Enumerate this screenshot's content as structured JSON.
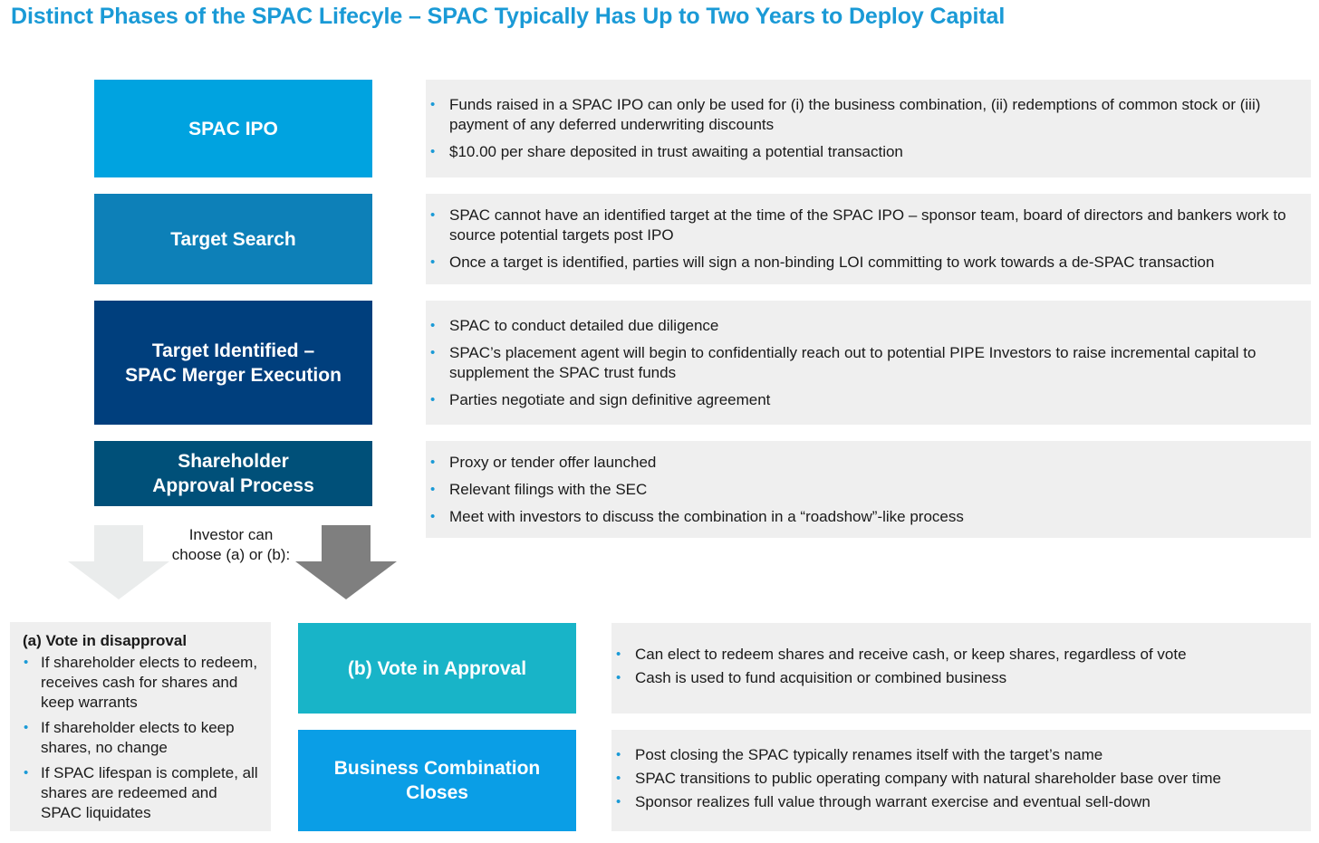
{
  "title": "Distinct Phases of the SPAC Lifecyle – SPAC Typically Has Up to Two Years to Deploy Capital",
  "colors": {
    "title": "#1a9ad6",
    "phase_spac_ipo": "#00a3e0",
    "phase_target_search": "#0d80b8",
    "phase_target_identified": "#003f7d",
    "phase_shareholder_approval": "#005079",
    "phase_vote_approval": "#18b4c8",
    "phase_business_combination": "#0a9ee6",
    "panel": "#efefef",
    "bullet": "#1a9ad6"
  },
  "phases": [
    {
      "label": "SPAC IPO",
      "bullets": [
        "Funds raised in a SPAC IPO can only be used for (i) the business combination, (ii) redemptions of common stock or (iii) payment of any deferred underwriting discounts",
        "$10.00 per share deposited in trust awaiting a potential transaction"
      ]
    },
    {
      "label": "Target Search",
      "bullets": [
        "SPAC cannot have an identified target at the time of the SPAC IPO – sponsor team, board of directors and bankers work to source potential targets post IPO",
        "Once a target is identified, parties will sign a non-binding LOI committing to work towards a de-SPAC transaction"
      ]
    },
    {
      "label_line1": "Target Identified –",
      "label_line2": "SPAC Merger Execution",
      "bullets": [
        "SPAC to conduct detailed due diligence",
        "SPAC’s placement agent will begin to confidentially reach out to potential PIPE Investors to raise incremental capital to supplement the SPAC trust funds",
        "Parties negotiate and sign definitive agreement"
      ]
    },
    {
      "label_line1": "Shareholder",
      "label_line2": "Approval Process",
      "bullets": [
        "Proxy or tender offer launched",
        "Relevant filings with the SEC",
        "Meet with investors to discuss the  combination in a “roadshow”-like process"
      ]
    }
  ],
  "choice_note": {
    "line1": "Investor can",
    "line2": "choose (a) or (b):"
  },
  "vote_disapproval": {
    "title": "(a) Vote in disapproval",
    "bullets": [
      "If shareholder elects to redeem, receives cash for shares and keep warrants",
      "If shareholder elects to keep shares, no change",
      "If SPAC lifespan is complete, all shares are redeemed and SPAC liquidates"
    ]
  },
  "vote_approval": {
    "label": "(b) Vote in Approval",
    "bullets": [
      "Can elect to redeem shares and receive cash, or keep shares, regardless of vote",
      "Cash is used to fund acquisition or combined business"
    ]
  },
  "business_combination": {
    "label_line1": "Business Combination",
    "label_line2": "Closes",
    "bullets": [
      "Post closing the SPAC typically renames itself with the target’s name",
      "SPAC transitions to public operating company with natural shareholder base over time",
      "Sponsor realizes full value through warrant exercise and eventual sell-down"
    ]
  }
}
